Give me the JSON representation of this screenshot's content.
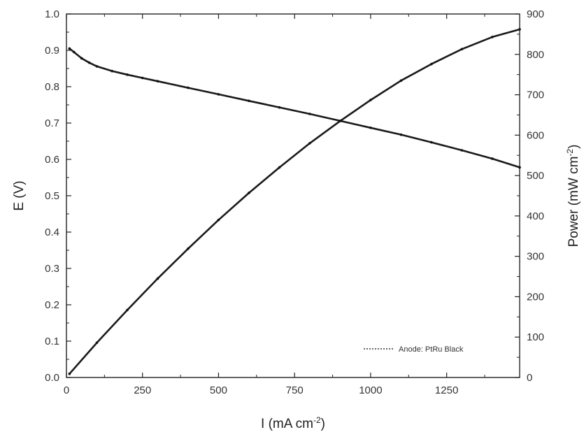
{
  "chart_data": {
    "type": "line",
    "xlabel_main": "I (mA cm",
    "xlabel_sup": "-2",
    "xlabel_end": ")",
    "ylabel_left": "E (V)",
    "ylabel_right_main": "Power (mW cm",
    "ylabel_right_sup": "-2",
    "ylabel_right_end": ")",
    "xlim": [
      0,
      1490
    ],
    "ylim_left": [
      0.0,
      1.0
    ],
    "ylim_right": [
      0,
      900
    ],
    "xticks": [
      0,
      250,
      500,
      750,
      1000,
      1250
    ],
    "xtick_labels": [
      "0",
      "250",
      "500",
      "750",
      "1000",
      "1250"
    ],
    "yticks_left": [
      0.0,
      0.1,
      0.2,
      0.3,
      0.4,
      0.5,
      0.6,
      0.7,
      0.8,
      0.9,
      1.0
    ],
    "ytick_labels_left": [
      "0.0",
      "0.1",
      "0.2",
      "0.3",
      "0.4",
      "0.5",
      "0.6",
      "0.7",
      "0.8",
      "0.9",
      "1.0"
    ],
    "yticks_right": [
      0,
      100,
      200,
      300,
      400,
      500,
      600,
      700,
      800,
      900
    ],
    "ytick_labels_right": [
      "0",
      "100",
      "200",
      "300",
      "400",
      "500",
      "600",
      "700",
      "800",
      "900"
    ],
    "legend": {
      "label": "Anode: PtRu Black",
      "placement": "bottom-right"
    },
    "grid": false,
    "series": [
      {
        "axis": "left",
        "x": [
          10,
          25,
          50,
          75,
          100,
          150,
          200,
          250,
          300,
          400,
          500,
          600,
          700,
          800,
          900,
          1000,
          1100,
          1200,
          1300,
          1400,
          1490
        ],
        "y": [
          0.905,
          0.895,
          0.878,
          0.866,
          0.856,
          0.843,
          0.833,
          0.824,
          0.815,
          0.797,
          0.779,
          0.761,
          0.743,
          0.725,
          0.706,
          0.687,
          0.668,
          0.647,
          0.625,
          0.602,
          0.578
        ]
      },
      {
        "axis": "right",
        "x": [
          10,
          100,
          200,
          300,
          400,
          500,
          600,
          700,
          800,
          900,
          1000,
          1100,
          1200,
          1300,
          1400,
          1490
        ],
        "y": [
          9,
          86,
          167,
          245,
          319,
          390,
          457,
          520,
          580,
          635,
          687,
          735,
          776,
          813,
          843,
          862
        ]
      }
    ]
  }
}
